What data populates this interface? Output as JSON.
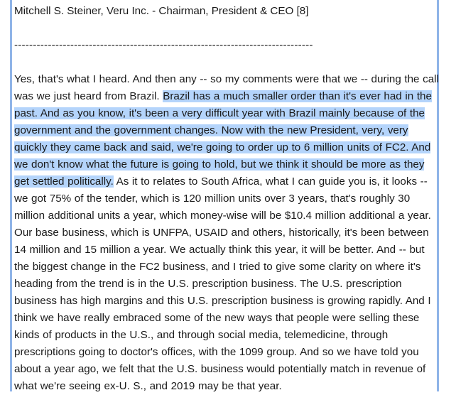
{
  "document": {
    "speaker_line": "Mitchell S. Steiner, Veru Inc. - Chairman, President & CEO [8]",
    "separator": "--------------------------------------------------------------------------------",
    "paragraph": {
      "before_selection": "Yes, that's what I heard. And then any -- so my comments were that we -- during the call was we just heard from Brazil. ",
      "selected_text": "Brazil has a much smaller order than it's ever had in the past. And as you know, it's been a very difficult year with Brazil mainly because of the government and the government changes. Now with the new President, very, very quickly they came back and said, we're going to order up to 6 million units of FC2. And we don't know what the future is going to hold, but we think it should be more as they get settled politically.",
      "after_selection": " As it to relates to South Africa, what I can guide you is, it looks -- we got 75% of the tender, which is 120 million units over 3 years, that's roughly 30 million additional units a year, which money-wise will be $10.4 million additional a year. Our base business, which is UNFPA, USAID and others, historically, it's been between 14 million and 15 million a year. We actually think this year, it will be better. And -- but the biggest change in the FC2 business, and I tried to give some clarity on where it's heading from the trend is in the U.S. prescription business. The U.S. prescription business has high margins and this U.S. prescription business is growing rapidly. And I think we have really embraced some of the new ways that people were selling these kinds of products in the U.S., and through social media, telemedicine, through prescriptions going to doctor's offices, with the 1099 group. And so we have told you about a year ago, we felt that the U.S. business would potentially match in revenue of what we're seeing ex-U. S., and 2019 may be that year."
    },
    "colors": {
      "selection": "#b4d4fb",
      "frame_border": "#8fb4e8",
      "text": "#1a1a1a"
    }
  }
}
